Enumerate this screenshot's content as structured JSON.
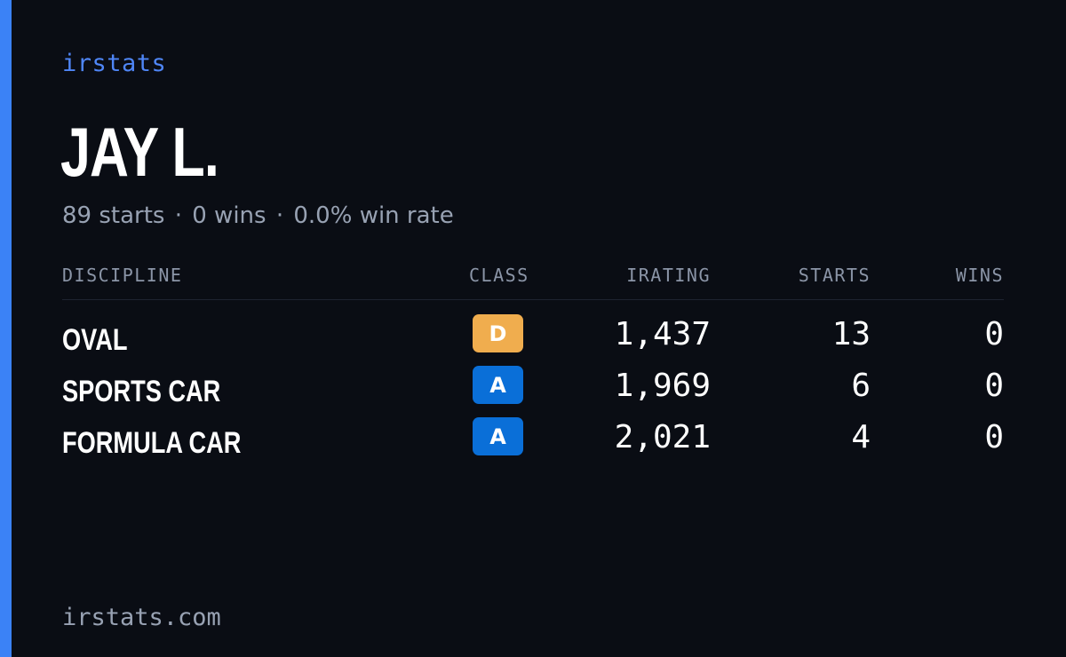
{
  "brand": "irstats",
  "driver": {
    "name": "JAY L.",
    "starts": "89 starts",
    "wins": "0 wins",
    "win_rate": "0.0% win rate",
    "separator": "·"
  },
  "table": {
    "headers": {
      "discipline": "DISCIPLINE",
      "class": "CLASS",
      "irating": "IRATING",
      "starts": "STARTS",
      "wins": "WINS"
    },
    "rows": [
      {
        "discipline": "OVAL",
        "class": "D",
        "irating": "1,437",
        "starts": "13",
        "wins": "0"
      },
      {
        "discipline": "SPORTS CAR",
        "class": "A",
        "irating": "1,969",
        "starts": "6",
        "wins": "0"
      },
      {
        "discipline": "FORMULA CAR",
        "class": "A",
        "irating": "2,021",
        "starts": "4",
        "wins": "0"
      }
    ]
  },
  "colors": {
    "background": "#0a0d14",
    "accent": "#3b82f6",
    "class_d": "#f0ad4e",
    "class_a": "#0a6fd8"
  },
  "footer": {
    "url": "irstats.com"
  }
}
